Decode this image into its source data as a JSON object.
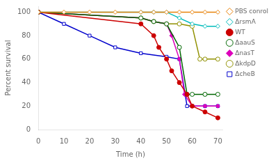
{
  "chart_data": {
    "type": "line",
    "xlabel": "Time (h)",
    "ylabel": "Percent survival",
    "xlim": [
      0,
      72
    ],
    "ylim": [
      0,
      105
    ],
    "xticks": [
      0,
      10,
      20,
      30,
      40,
      50,
      60,
      70
    ],
    "yticks": [
      0,
      20,
      40,
      60,
      80,
      100
    ],
    "grid": false,
    "legend": "right",
    "series": [
      {
        "name": "PBS conrol",
        "color": "#E8820A",
        "marker": "diamond-open",
        "x": [
          0,
          10,
          20,
          30,
          40,
          45,
          50,
          55,
          60,
          65,
          70
        ],
        "values": [
          100,
          100,
          100,
          100,
          100,
          100,
          100,
          100,
          100,
          100,
          100
        ]
      },
      {
        "name": "ΔrsmA",
        "color": "#00BBBB",
        "marker": "diamond-open",
        "x": [
          0,
          40,
          45,
          50,
          55,
          60,
          65,
          70
        ],
        "values": [
          100,
          100,
          100,
          100,
          95,
          90,
          88,
          88
        ]
      },
      {
        "name": "WT",
        "color": "#CC0000",
        "marker": "circle",
        "x": [
          0,
          40,
          45,
          47,
          50,
          52,
          55,
          58,
          60,
          65,
          70
        ],
        "values": [
          100,
          90,
          80,
          70,
          60,
          50,
          40,
          30,
          20,
          15,
          10
        ]
      },
      {
        "name": "ΔaauS",
        "color": "#006600",
        "marker": "circle-open",
        "x": [
          0,
          40,
          45,
          50,
          55,
          58,
          60,
          65,
          70
        ],
        "values": [
          100,
          95,
          92,
          90,
          70,
          30,
          30,
          30,
          30
        ]
      },
      {
        "name": "ΔnasT",
        "color": "#DD00BB",
        "marker": "diamond",
        "x": [
          0,
          40,
          45,
          50,
          52,
          55,
          57,
          60,
          65,
          70
        ],
        "values": [
          100,
          95,
          92,
          90,
          80,
          60,
          30,
          20,
          20,
          20
        ]
      },
      {
        "name": "ΔkdpD",
        "color": "#909000",
        "marker": "circle-open",
        "x": [
          0,
          40,
          45,
          50,
          55,
          60,
          63,
          65,
          70
        ],
        "values": [
          100,
          95,
          92,
          90,
          90,
          88,
          60,
          60,
          60
        ]
      },
      {
        "name": "ΔcheB",
        "color": "#0000CC",
        "marker": "square-open",
        "x": [
          0,
          10,
          20,
          30,
          40,
          50,
          55,
          58,
          60,
          65,
          70
        ],
        "values": [
          100,
          90,
          80,
          70,
          65,
          62,
          60,
          20,
          20,
          20,
          20
        ]
      }
    ]
  }
}
